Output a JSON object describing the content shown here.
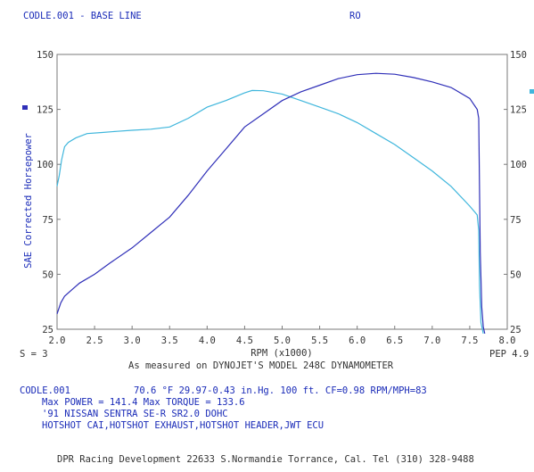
{
  "header": {
    "run_title": "CODLE.001 - BASE LINE",
    "code": "RO"
  },
  "footer": {
    "smoothing": "S = 3",
    "pep": "PEP 4.9",
    "measured_on": "As measured on DYNOJET'S MODEL 248C DYNAMOMETER",
    "file": "CODLE.001",
    "conditions": "70.6 °F   29.97-0.43 in.Hg.  100 ft.  CF=0.98  RPM/MPH=83",
    "max_line": "Max POWER = 141.4   Max TORQUE = 133.6",
    "car": "'91 NISSAN SENTRA SE-R SR2.0 DOHC",
    "mods": "HOTSHOT CAI,HOTSHOT EXHAUST,HOTSHOT HEADER,JWT ECU",
    "shop": "DPR Racing Development 22633 S.Normandie Torrance, Cal. Tel (310) 328-9488"
  },
  "chart_data": {
    "type": "line",
    "xlabel": "RPM (x1000)",
    "ylabel": "SAE Corrected Horsepower",
    "xlim": [
      2.0,
      8.0
    ],
    "ylim": [
      25,
      150
    ],
    "x_ticks": [
      "2.0",
      "2.5",
      "3.0",
      "3.5",
      "4.0",
      "4.5",
      "5.0",
      "5.5",
      "6.0",
      "6.5",
      "7.0",
      "7.5",
      "8.0"
    ],
    "y_ticks_left": [
      "25",
      "50",
      "75",
      "100",
      "125",
      "150"
    ],
    "y_ticks_right": [
      "25",
      "50",
      "75",
      "100",
      "125",
      "150"
    ],
    "grid": false,
    "colors": {
      "frame": "#7a7a7a",
      "text": "#1a2bb8",
      "power": "#2f2fb8",
      "torque": "#3fb6dc"
    },
    "series": [
      {
        "id": "power",
        "x": [
          2.0,
          2.05,
          2.1,
          2.2,
          2.3,
          2.5,
          2.7,
          3.0,
          3.25,
          3.5,
          3.75,
          4.0,
          4.25,
          4.5,
          4.75,
          5.0,
          5.25,
          5.5,
          5.75,
          6.0,
          6.25,
          6.5,
          6.75,
          7.0,
          7.25,
          7.5,
          7.6,
          7.62,
          7.64,
          7.66,
          7.68,
          7.7
        ],
        "y": [
          32,
          37,
          40,
          43,
          46,
          50,
          55,
          62,
          69,
          76,
          86,
          97,
          107,
          117,
          123,
          129,
          133,
          136,
          139,
          140.8,
          141.4,
          141,
          139.5,
          137.5,
          135,
          130,
          125,
          121,
          60,
          35,
          26,
          23
        ]
      },
      {
        "id": "torque",
        "x": [
          2.0,
          2.03,
          2.06,
          2.1,
          2.15,
          2.25,
          2.4,
          2.6,
          2.8,
          3.0,
          3.25,
          3.5,
          3.75,
          4.0,
          4.25,
          4.5,
          4.6,
          4.75,
          5.0,
          5.25,
          5.5,
          5.75,
          6.0,
          6.25,
          6.5,
          6.75,
          7.0,
          7.25,
          7.5,
          7.6,
          7.62,
          7.63,
          7.65,
          7.68
        ],
        "y": [
          90,
          95,
          102,
          108,
          110,
          112,
          114,
          114.5,
          115,
          115.5,
          116,
          117,
          121,
          126,
          129,
          132.5,
          133.6,
          133.5,
          132,
          129,
          126,
          123,
          119,
          114,
          109,
          103,
          97,
          90,
          81,
          77,
          70,
          45,
          28,
          23
        ]
      }
    ]
  }
}
